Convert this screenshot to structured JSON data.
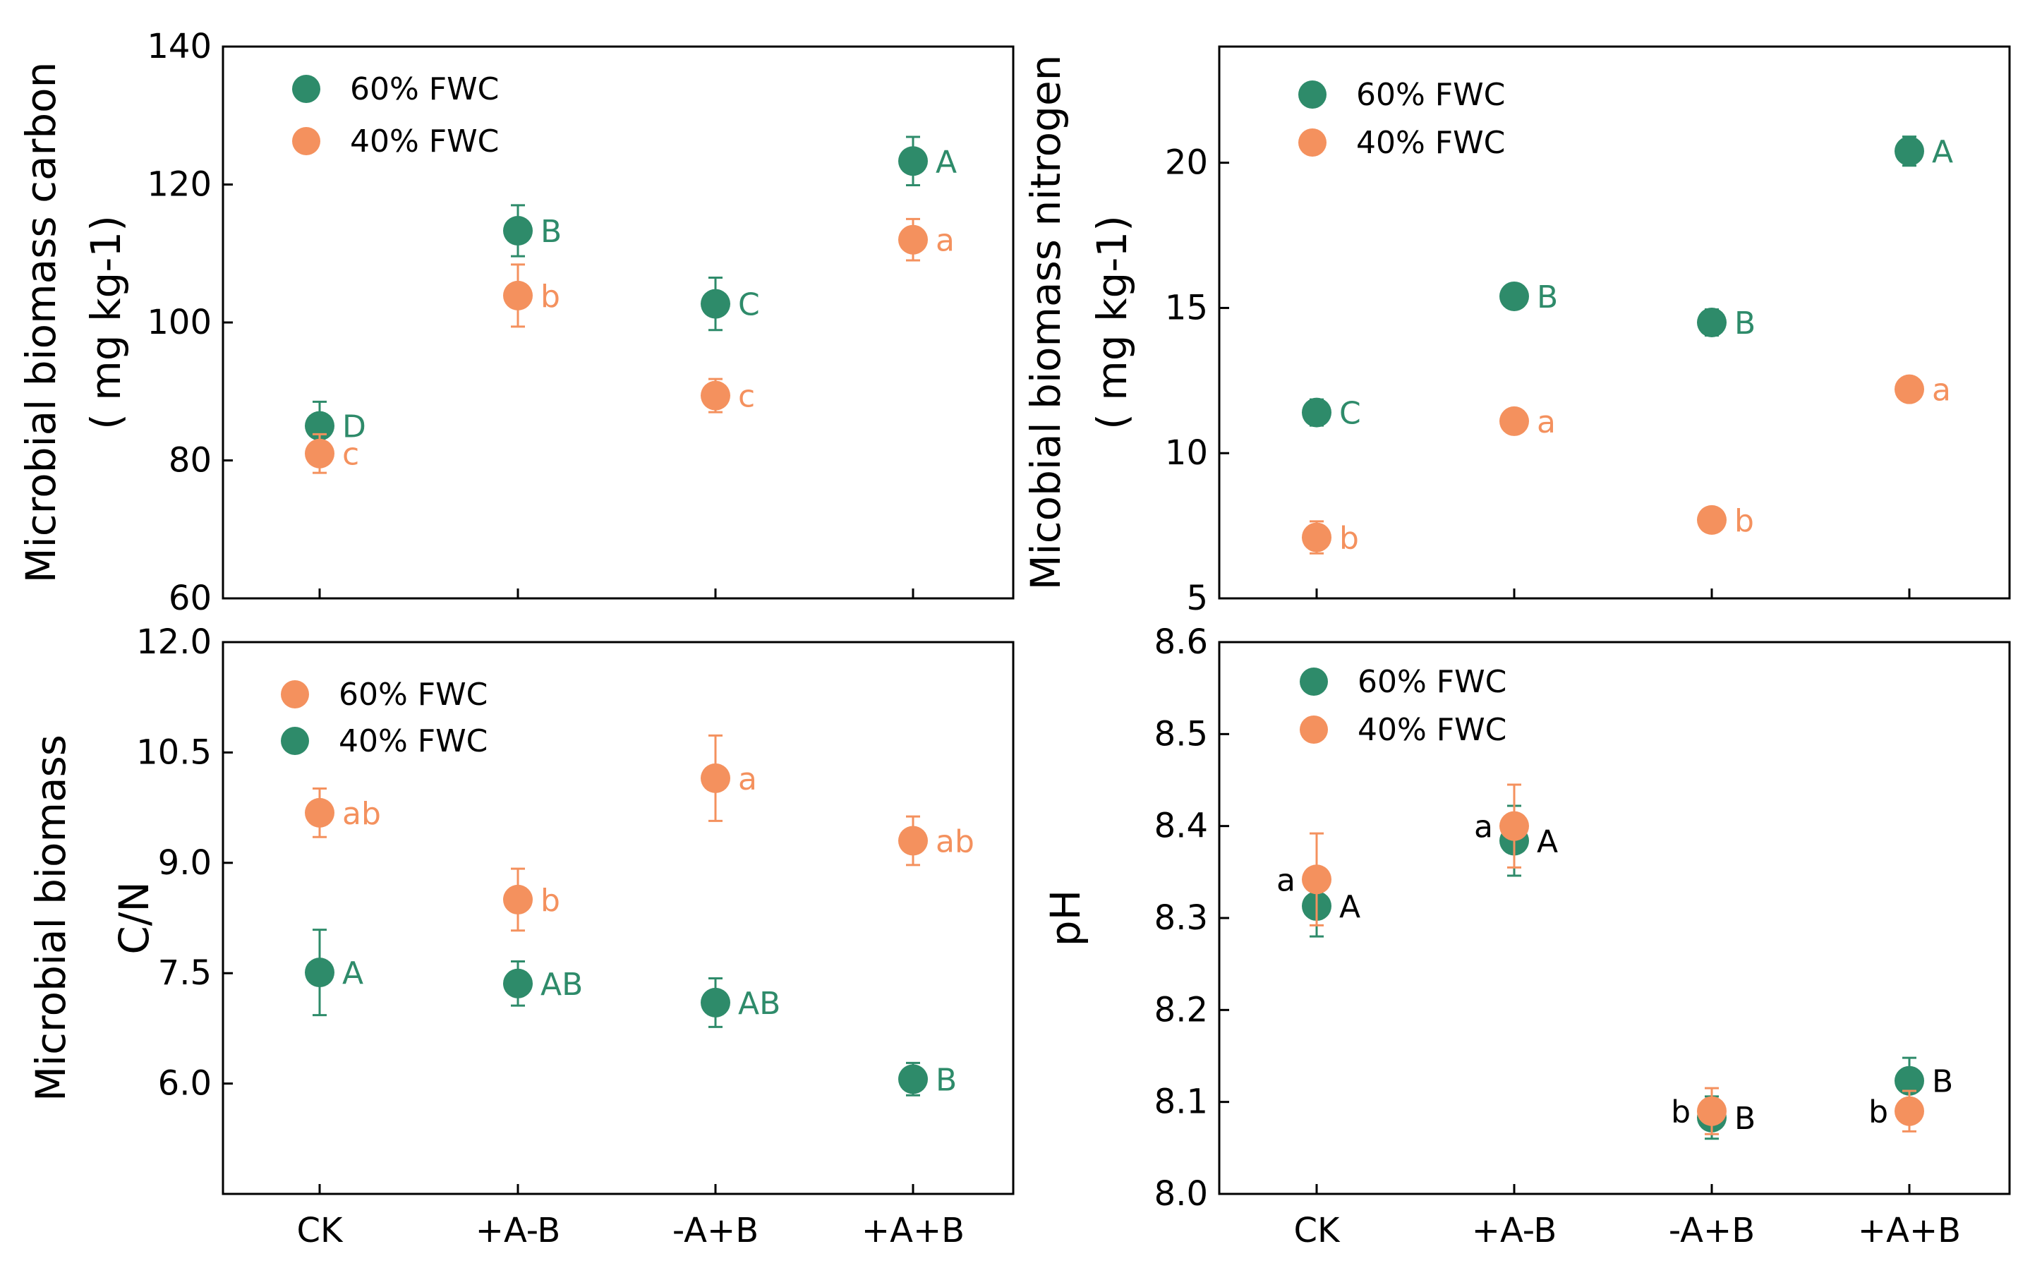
{
  "colors": {
    "green": "#2E8B6A",
    "orange": "#F4915E"
  },
  "chart_data": [
    {
      "type": "scatter",
      "id": "mbc",
      "ylabel": "Microbial biomass carbon",
      "ylabel_unit": "( mg kg-1)",
      "categories": [
        "CK",
        "+A-B",
        "-A+B",
        "+A+B"
      ],
      "ylim": [
        60,
        140
      ],
      "yticks": [
        60,
        80,
        100,
        120,
        140
      ],
      "ytick_labels": [
        "60",
        "80",
        "100",
        "120",
        "140"
      ],
      "show_xticklabels": false,
      "legend": [
        {
          "label": "60% FWC",
          "color": "green"
        },
        {
          "label": "40% FWC",
          "color": "orange"
        }
      ],
      "series": [
        {
          "name": "60% FWC",
          "color": "green",
          "values": [
            85,
            113.3,
            102.7,
            123.4
          ],
          "errors": [
            3.5,
            3.7,
            3.8,
            3.5
          ],
          "letters": [
            "D",
            "B",
            "C",
            "A"
          ],
          "letter_side": "right"
        },
        {
          "name": "40% FWC",
          "color": "orange",
          "values": [
            81,
            103.9,
            89.4,
            112
          ],
          "errors": [
            2.8,
            4.5,
            2.4,
            3
          ],
          "letters": [
            "c",
            "b",
            "c",
            "a"
          ],
          "letter_side": "right"
        }
      ]
    },
    {
      "type": "scatter",
      "id": "mbn",
      "ylabel": "Micobial biomass nitrogen",
      "ylabel_unit": "( mg kg-1)",
      "categories": [
        "CK",
        "+A-B",
        "-A+B",
        "+A+B"
      ],
      "ylim": [
        5,
        24
      ],
      "yticks": [
        5,
        10,
        15,
        20
      ],
      "ytick_labels": [
        "5",
        "10",
        "15",
        "20"
      ],
      "show_xticklabels": false,
      "legend": [
        {
          "label": "60% FWC",
          "color": "green"
        },
        {
          "label": "40% FWC",
          "color": "orange"
        }
      ],
      "series": [
        {
          "name": "60% FWC",
          "color": "green",
          "values": [
            11.4,
            15.4,
            14.5,
            20.4
          ],
          "errors": [
            0.45,
            0.35,
            0.45,
            0.5
          ],
          "letters": [
            "C",
            "B",
            "B",
            "A"
          ],
          "letter_side": "right"
        },
        {
          "name": "40% FWC",
          "color": "orange",
          "values": [
            7.1,
            11.1,
            7.7,
            12.2
          ],
          "errors": [
            0.55,
            0.4,
            0.3,
            0.35
          ],
          "letters": [
            "b",
            "a",
            "b",
            "a"
          ],
          "letter_side": "right"
        }
      ]
    },
    {
      "type": "scatter",
      "id": "cn",
      "ylabel": "Microbial biomass",
      "ylabel_line2": "C/N",
      "categories": [
        "CK",
        "+A-B",
        "-A+B",
        "+A+B"
      ],
      "ylim": [
        4.5,
        12
      ],
      "yticks": [
        6,
        7.5,
        9,
        10.5,
        12
      ],
      "ytick_labels": [
        "6.0",
        "7.5",
        "9.0",
        "10.5",
        "12.0"
      ],
      "show_xticklabels": true,
      "legend": [
        {
          "label": "60% FWC",
          "color": "orange"
        },
        {
          "label": "40% FWC",
          "color": "green"
        }
      ],
      "series": [
        {
          "name": "60% FWC",
          "color": "orange",
          "values": [
            9.68,
            8.5,
            10.15,
            9.3
          ],
          "errors": [
            0.33,
            0.42,
            0.58,
            0.33
          ],
          "letters": [
            "ab",
            "b",
            "a",
            "ab"
          ],
          "letter_side": "right"
        },
        {
          "name": "40% FWC",
          "color": "green",
          "values": [
            7.51,
            7.36,
            7.1,
            6.06
          ],
          "errors": [
            0.58,
            0.3,
            0.33,
            0.22
          ],
          "letters": [
            "A",
            "AB",
            "AB",
            "B"
          ],
          "letter_side": "right"
        }
      ]
    },
    {
      "type": "scatter",
      "id": "ph",
      "ylabel": "pH",
      "categories": [
        "CK",
        "+A-B",
        "-A+B",
        "+A+B"
      ],
      "ylim": [
        8.0,
        8.6
      ],
      "yticks": [
        8.0,
        8.1,
        8.2,
        8.3,
        8.4,
        8.5,
        8.6
      ],
      "ytick_labels": [
        "8.0",
        "8.1",
        "8.2",
        "8.3",
        "8.4",
        "8.5",
        "8.6"
      ],
      "show_xticklabels": true,
      "legend": [
        {
          "label": "60% FWC",
          "color": "green"
        },
        {
          "label": "40% FWC",
          "color": "orange"
        }
      ],
      "series": [
        {
          "name": "60% FWC",
          "color": "green",
          "values": [
            8.313,
            8.384,
            8.083,
            8.123
          ],
          "errors": [
            0.033,
            0.038,
            0.023,
            0.025
          ],
          "letters": [
            "A",
            "A",
            "B",
            "B"
          ],
          "letter_side": "right"
        },
        {
          "name": "40% FWC",
          "color": "orange",
          "values": [
            8.342,
            8.4,
            8.09,
            8.09
          ],
          "errors": [
            0.05,
            0.045,
            0.025,
            0.022
          ],
          "letters": [
            "a",
            "a",
            "b",
            "b"
          ],
          "letter_side": "left"
        }
      ]
    }
  ]
}
